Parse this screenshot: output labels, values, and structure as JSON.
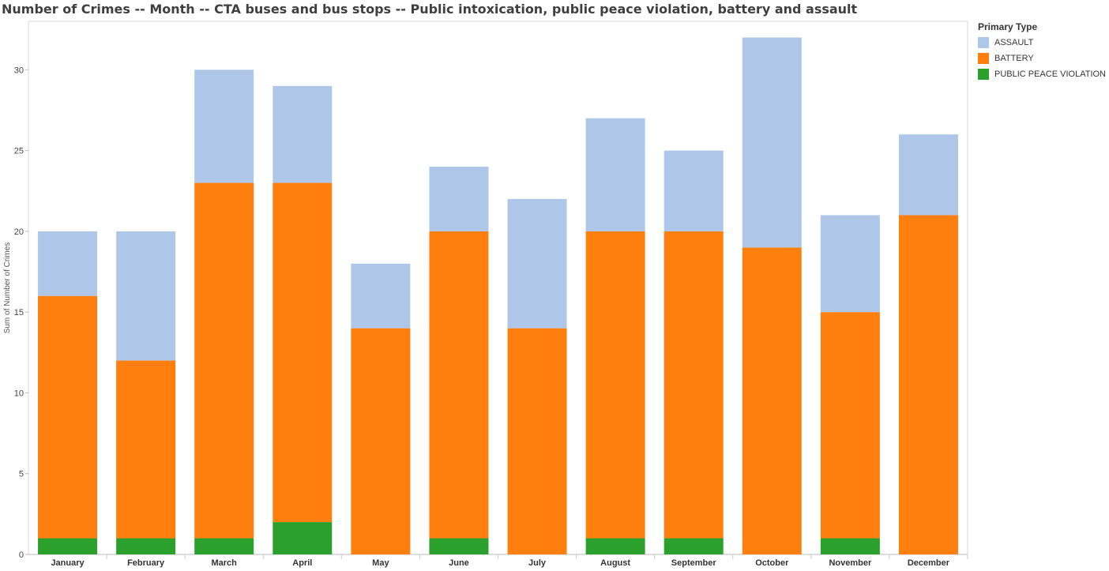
{
  "chart_data": {
    "type": "bar",
    "stacked": true,
    "title": "Number of Crimes -- Month -- CTA buses and bus stops -- Public intoxication, public peace violation, battery and assault",
    "ylabel": "Sum of Number of Crimes",
    "xlabel": "",
    "ylim": [
      0,
      33
    ],
    "yticks": [
      0,
      5,
      10,
      15,
      20,
      25,
      30
    ],
    "categories": [
      "January",
      "February",
      "March",
      "April",
      "May",
      "June",
      "July",
      "August",
      "September",
      "October",
      "November",
      "December"
    ],
    "legend_title": "Primary Type",
    "legend_position": "right",
    "series": [
      {
        "name": "PUBLIC PEACE VIOLATION",
        "color": "#2ca02c",
        "values": [
          1,
          1,
          1,
          2,
          0,
          1,
          0,
          1,
          1,
          0,
          1,
          0
        ]
      },
      {
        "name": "BATTERY",
        "color": "#ff7f0e",
        "values": [
          15,
          11,
          22,
          21,
          14,
          19,
          14,
          19,
          19,
          19,
          14,
          21
        ]
      },
      {
        "name": "ASSAULT",
        "color": "#aec7e8",
        "values": [
          4,
          8,
          7,
          6,
          4,
          4,
          8,
          7,
          5,
          13,
          6,
          5
        ]
      }
    ],
    "legend_order": [
      "ASSAULT",
      "BATTERY",
      "PUBLIC PEACE VIOLATION"
    ]
  }
}
